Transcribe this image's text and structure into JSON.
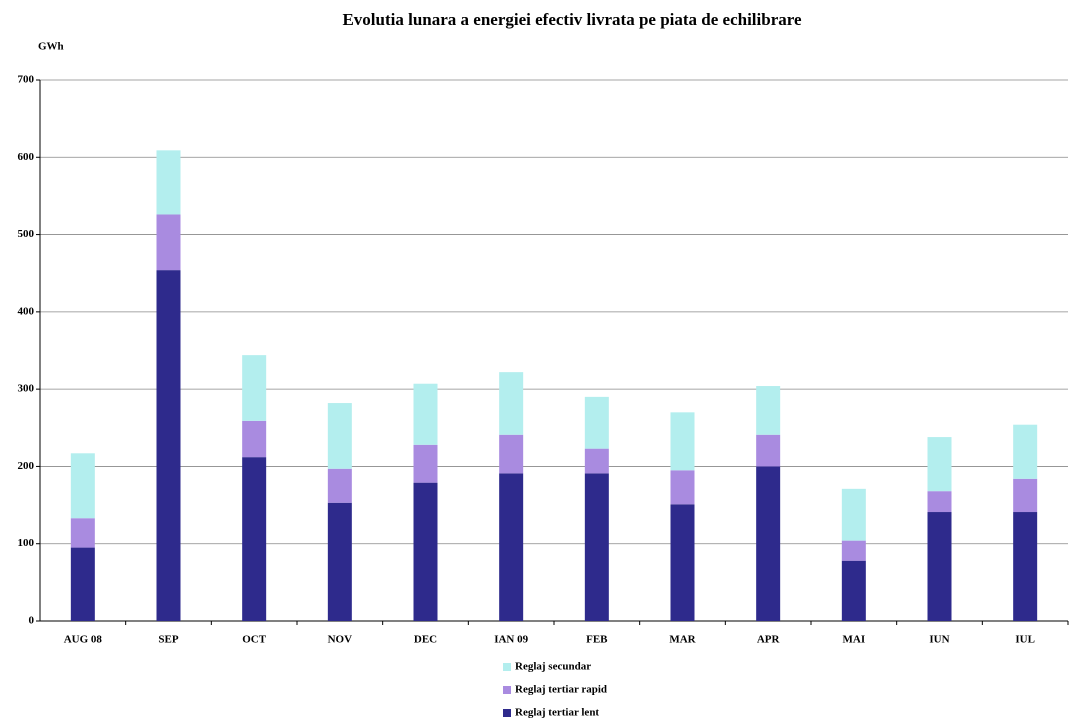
{
  "chart_data": {
    "type": "stacked_bar",
    "title": "Evolutia lunara a energiei efectiv livrata pe piata de echilibrare",
    "y_label": "GWh",
    "categories": [
      "AUG 08",
      "SEP",
      "OCT",
      "NOV",
      "DEC",
      "IAN 09",
      "FEB",
      "MAR",
      "APR",
      "MAI",
      "IUN",
      "IUL"
    ],
    "series": [
      {
        "name": "Reglaj tertiar lent",
        "color": "#2e2a8c",
        "values": [
          95,
          454,
          212,
          153,
          179,
          191,
          191,
          151,
          200,
          78,
          141,
          141
        ]
      },
      {
        "name": "Reglaj tertiar rapid",
        "color": "#a98be0",
        "values": [
          38,
          72,
          47,
          44,
          49,
          50,
          32,
          44,
          41,
          26,
          27,
          43
        ]
      },
      {
        "name": "Reglaj secundar",
        "color": "#b3eeee",
        "values": [
          84,
          83,
          85,
          85,
          79,
          81,
          67,
          75,
          63,
          67,
          70,
          70
        ]
      }
    ],
    "ylim": [
      0,
      700
    ],
    "yticks": [
      0,
      100,
      200,
      300,
      400,
      500,
      600,
      700
    ],
    "grid": true
  }
}
